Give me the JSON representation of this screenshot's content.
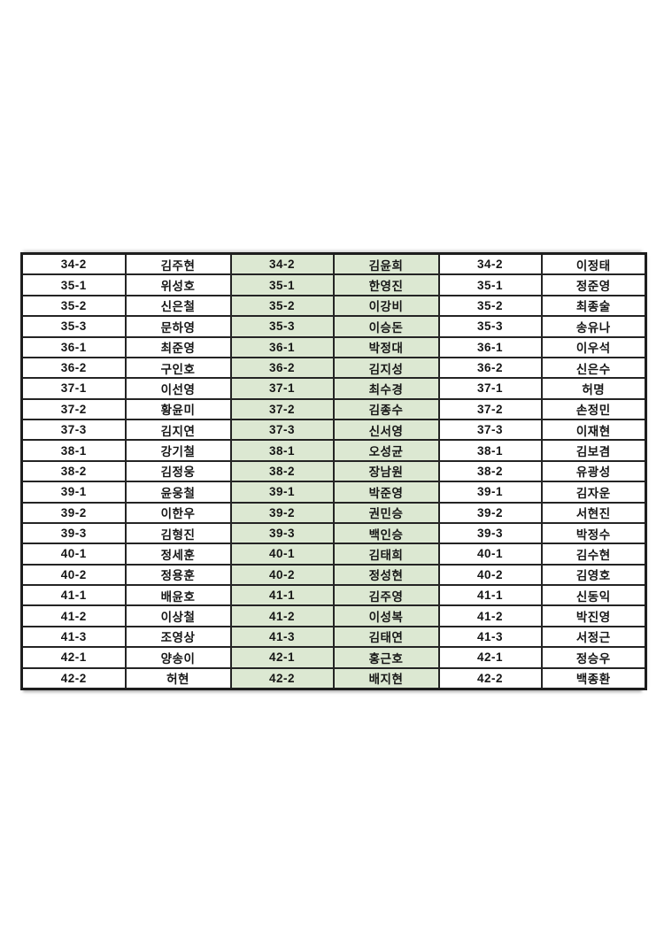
{
  "document": {
    "kind": "class-roster-table",
    "background_color": "#ffffff",
    "accent_green": "#dce8d2",
    "border_color": "#242424"
  },
  "table": {
    "sections": [
      {
        "name": "left-section",
        "highlight": false
      },
      {
        "name": "middle-section",
        "highlight": true
      },
      {
        "name": "right-section",
        "highlight": false
      }
    ],
    "rows": [
      {
        "code": "34-2",
        "left": "김주현",
        "middle": "김윤희",
        "right": "이정태"
      },
      {
        "code": "35-1",
        "left": "위성호",
        "middle": "한영진",
        "right": "정준영"
      },
      {
        "code": "35-2",
        "left": "신은철",
        "middle": "이강비",
        "right": "최종술"
      },
      {
        "code": "35-3",
        "left": "문하영",
        "middle": "이승돈",
        "right": "송유나"
      },
      {
        "code": "36-1",
        "left": "최준영",
        "middle": "박정대",
        "right": "이우석"
      },
      {
        "code": "36-2",
        "left": "구인호",
        "middle": "김지성",
        "right": "신은수"
      },
      {
        "code": "37-1",
        "left": "이선영",
        "middle": "최수경",
        "right": "허명"
      },
      {
        "code": "37-2",
        "left": "황윤미",
        "middle": "김종수",
        "right": "손정민"
      },
      {
        "code": "37-3",
        "left": "김지연",
        "middle": "신서영",
        "right": "이재현"
      },
      {
        "code": "38-1",
        "left": "강기철",
        "middle": "오성균",
        "right": "김보겸"
      },
      {
        "code": "38-2",
        "left": "김정웅",
        "middle": "장남원",
        "right": "유광성"
      },
      {
        "code": "39-1",
        "left": "윤웅철",
        "middle": "박준영",
        "right": "김자운"
      },
      {
        "code": "39-2",
        "left": "이한우",
        "middle": "권민승",
        "right": "서현진"
      },
      {
        "code": "39-3",
        "left": "김형진",
        "middle": "백인승",
        "right": "박정수"
      },
      {
        "code": "40-1",
        "left": "정세훈",
        "middle": "김태희",
        "right": "김수현"
      },
      {
        "code": "40-2",
        "left": "정용훈",
        "middle": "정성현",
        "right": "김영호"
      },
      {
        "code": "41-1",
        "left": "배윤호",
        "middle": "김주영",
        "right": "신동익"
      },
      {
        "code": "41-2",
        "left": "이상철",
        "middle": "이성복",
        "right": "박진영"
      },
      {
        "code": "41-3",
        "left": "조영상",
        "middle": "김태연",
        "right": "서정근"
      },
      {
        "code": "42-1",
        "left": "양송이",
        "middle": "홍근호",
        "right": "정승우"
      },
      {
        "code": "42-2",
        "left": "허현",
        "middle": "배지현",
        "right": "백종환"
      }
    ]
  }
}
